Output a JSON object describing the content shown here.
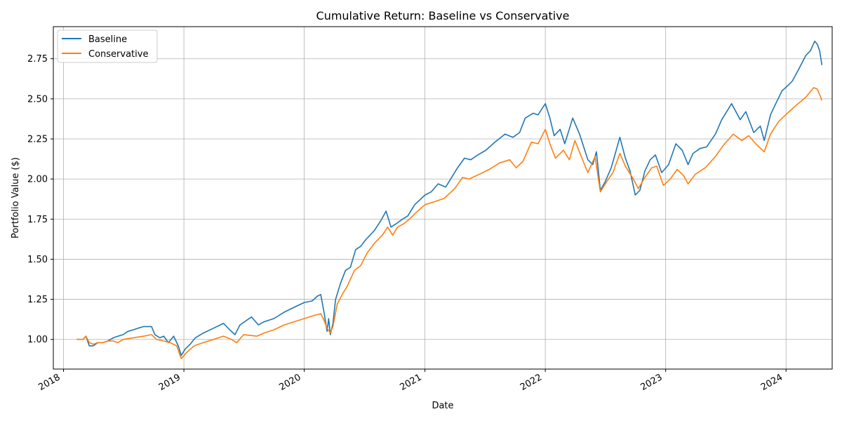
{
  "chart_data": {
    "type": "line",
    "title": "Cumulative Return: Baseline vs Conservative",
    "xlabel": "Date",
    "ylabel": "Portfolio Value ($)",
    "xlim": [
      "2017-12-01",
      "2024-05-20"
    ],
    "ylim": [
      0.815,
      2.95
    ],
    "x_ticks": [
      "2018",
      "2019",
      "2020",
      "2021",
      "2022",
      "2023",
      "2024"
    ],
    "y_ticks": [
      "1.00",
      "1.25",
      "1.50",
      "1.75",
      "2.00",
      "2.25",
      "2.50",
      "2.75"
    ],
    "grid": true,
    "legend_position": "top-left",
    "series": [
      {
        "name": "Baseline",
        "color": "#1f77b4",
        "points": [
          [
            "2018-02-10",
            1.0
          ],
          [
            "2018-03-01",
            1.0
          ],
          [
            "2018-03-10",
            1.02
          ],
          [
            "2018-03-20",
            0.96
          ],
          [
            "2018-04-01",
            0.96
          ],
          [
            "2018-04-15",
            0.98
          ],
          [
            "2018-05-01",
            0.98
          ],
          [
            "2018-05-15",
            0.99
          ],
          [
            "2018-06-01",
            1.01
          ],
          [
            "2018-06-15",
            1.02
          ],
          [
            "2018-07-01",
            1.03
          ],
          [
            "2018-07-15",
            1.05
          ],
          [
            "2018-08-01",
            1.06
          ],
          [
            "2018-08-15",
            1.07
          ],
          [
            "2018-09-01",
            1.08
          ],
          [
            "2018-09-25",
            1.08
          ],
          [
            "2018-10-05",
            1.03
          ],
          [
            "2018-10-20",
            1.01
          ],
          [
            "2018-11-01",
            1.02
          ],
          [
            "2018-11-15",
            0.98
          ],
          [
            "2018-12-01",
            1.02
          ],
          [
            "2018-12-15",
            0.96
          ],
          [
            "2018-12-24",
            0.9
          ],
          [
            "2019-01-05",
            0.94
          ],
          [
            "2019-01-20",
            0.97
          ],
          [
            "2019-02-05",
            1.01
          ],
          [
            "2019-03-01",
            1.04
          ],
          [
            "2019-04-01",
            1.07
          ],
          [
            "2019-05-01",
            1.1
          ],
          [
            "2019-05-20",
            1.06
          ],
          [
            "2019-06-05",
            1.03
          ],
          [
            "2019-06-20",
            1.09
          ],
          [
            "2019-07-25",
            1.14
          ],
          [
            "2019-08-15",
            1.09
          ],
          [
            "2019-09-01",
            1.11
          ],
          [
            "2019-10-01",
            1.13
          ],
          [
            "2019-11-01",
            1.17
          ],
          [
            "2019-12-01",
            1.2
          ],
          [
            "2020-01-01",
            1.23
          ],
          [
            "2020-01-25",
            1.24
          ],
          [
            "2020-02-10",
            1.27
          ],
          [
            "2020-02-20",
            1.28
          ],
          [
            "2020-03-01",
            1.17
          ],
          [
            "2020-03-10",
            1.05
          ],
          [
            "2020-03-15",
            1.13
          ],
          [
            "2020-03-20",
            1.03
          ],
          [
            "2020-03-28",
            1.1
          ],
          [
            "2020-04-05",
            1.25
          ],
          [
            "2020-04-20",
            1.35
          ],
          [
            "2020-05-05",
            1.43
          ],
          [
            "2020-05-20",
            1.45
          ],
          [
            "2020-06-05",
            1.56
          ],
          [
            "2020-06-20",
            1.58
          ],
          [
            "2020-07-05",
            1.62
          ],
          [
            "2020-08-01",
            1.68
          ],
          [
            "2020-08-20",
            1.74
          ],
          [
            "2020-09-05",
            1.8
          ],
          [
            "2020-09-20",
            1.7
          ],
          [
            "2020-10-05",
            1.72
          ],
          [
            "2020-10-25",
            1.75
          ],
          [
            "2020-11-10",
            1.77
          ],
          [
            "2020-12-01",
            1.84
          ],
          [
            "2021-01-01",
            1.9
          ],
          [
            "2021-01-20",
            1.92
          ],
          [
            "2021-02-10",
            1.97
          ],
          [
            "2021-03-05",
            1.95
          ],
          [
            "2021-03-20",
            2.0
          ],
          [
            "2021-04-10",
            2.07
          ],
          [
            "2021-05-01",
            2.13
          ],
          [
            "2021-05-20",
            2.12
          ],
          [
            "2021-06-10",
            2.15
          ],
          [
            "2021-07-05",
            2.18
          ],
          [
            "2021-08-01",
            2.23
          ],
          [
            "2021-09-01",
            2.28
          ],
          [
            "2021-09-25",
            2.26
          ],
          [
            "2021-10-15",
            2.29
          ],
          [
            "2021-11-01",
            2.38
          ],
          [
            "2021-11-25",
            2.41
          ],
          [
            "2021-12-10",
            2.4
          ],
          [
            "2022-01-01",
            2.47
          ],
          [
            "2022-01-15",
            2.38
          ],
          [
            "2022-01-28",
            2.27
          ],
          [
            "2022-02-15",
            2.31
          ],
          [
            "2022-03-01",
            2.22
          ],
          [
            "2022-03-25",
            2.38
          ],
          [
            "2022-04-15",
            2.28
          ],
          [
            "2022-05-10",
            2.12
          ],
          [
            "2022-05-25",
            2.09
          ],
          [
            "2022-06-05",
            2.17
          ],
          [
            "2022-06-17",
            1.93
          ],
          [
            "2022-07-01",
            1.98
          ],
          [
            "2022-07-20",
            2.07
          ],
          [
            "2022-08-15",
            2.26
          ],
          [
            "2022-09-01",
            2.13
          ],
          [
            "2022-09-15",
            2.05
          ],
          [
            "2022-10-01",
            1.9
          ],
          [
            "2022-10-15",
            1.93
          ],
          [
            "2022-10-30",
            2.05
          ],
          [
            "2022-11-15",
            2.12
          ],
          [
            "2022-12-01",
            2.15
          ],
          [
            "2022-12-20",
            2.04
          ],
          [
            "2023-01-10",
            2.09
          ],
          [
            "2023-02-01",
            2.22
          ],
          [
            "2023-02-20",
            2.18
          ],
          [
            "2023-03-10",
            2.09
          ],
          [
            "2023-03-25",
            2.16
          ],
          [
            "2023-04-15",
            2.19
          ],
          [
            "2023-05-05",
            2.2
          ],
          [
            "2023-06-01",
            2.28
          ],
          [
            "2023-06-20",
            2.37
          ],
          [
            "2023-07-20",
            2.47
          ],
          [
            "2023-08-15",
            2.37
          ],
          [
            "2023-09-01",
            2.42
          ],
          [
            "2023-09-25",
            2.29
          ],
          [
            "2023-10-15",
            2.33
          ],
          [
            "2023-10-27",
            2.24
          ],
          [
            "2023-11-15",
            2.4
          ],
          [
            "2023-12-01",
            2.47
          ],
          [
            "2023-12-20",
            2.55
          ],
          [
            "2024-01-05",
            2.58
          ],
          [
            "2024-01-20",
            2.61
          ],
          [
            "2024-02-10",
            2.69
          ],
          [
            "2024-03-01",
            2.77
          ],
          [
            "2024-03-15",
            2.8
          ],
          [
            "2024-03-28",
            2.86
          ],
          [
            "2024-04-05",
            2.84
          ],
          [
            "2024-04-12",
            2.8
          ],
          [
            "2024-04-19",
            2.71
          ]
        ]
      },
      {
        "name": "Conservative",
        "color": "#ff7f0e",
        "points": [
          [
            "2018-02-10",
            1.0
          ],
          [
            "2018-03-01",
            1.0
          ],
          [
            "2018-03-10",
            1.02
          ],
          [
            "2018-03-20",
            0.98
          ],
          [
            "2018-04-01",
            0.97
          ],
          [
            "2018-04-15",
            0.98
          ],
          [
            "2018-05-01",
            0.98
          ],
          [
            "2018-05-15",
            0.99
          ],
          [
            "2018-06-01",
            0.99
          ],
          [
            "2018-06-15",
            0.98
          ],
          [
            "2018-07-01",
            1.0
          ],
          [
            "2018-08-01",
            1.01
          ],
          [
            "2018-09-01",
            1.02
          ],
          [
            "2018-09-25",
            1.03
          ],
          [
            "2018-10-10",
            1.0
          ],
          [
            "2018-11-01",
            0.99
          ],
          [
            "2018-11-20",
            0.98
          ],
          [
            "2018-12-10",
            0.96
          ],
          [
            "2018-12-24",
            0.88
          ],
          [
            "2019-01-10",
            0.92
          ],
          [
            "2019-02-01",
            0.96
          ],
          [
            "2019-03-01",
            0.98
          ],
          [
            "2019-04-01",
            1.0
          ],
          [
            "2019-05-01",
            1.02
          ],
          [
            "2019-05-25",
            1.0
          ],
          [
            "2019-06-10",
            0.98
          ],
          [
            "2019-07-01",
            1.03
          ],
          [
            "2019-08-10",
            1.02
          ],
          [
            "2019-09-01",
            1.04
          ],
          [
            "2019-10-01",
            1.06
          ],
          [
            "2019-11-01",
            1.09
          ],
          [
            "2019-12-01",
            1.11
          ],
          [
            "2020-01-01",
            1.13
          ],
          [
            "2020-02-01",
            1.15
          ],
          [
            "2020-02-20",
            1.16
          ],
          [
            "2020-03-01",
            1.12
          ],
          [
            "2020-03-10",
            1.07
          ],
          [
            "2020-03-20",
            1.04
          ],
          [
            "2020-03-28",
            1.08
          ],
          [
            "2020-04-10",
            1.22
          ],
          [
            "2020-04-25",
            1.28
          ],
          [
            "2020-05-10",
            1.33
          ],
          [
            "2020-06-01",
            1.43
          ],
          [
            "2020-06-20",
            1.46
          ],
          [
            "2020-07-10",
            1.54
          ],
          [
            "2020-08-01",
            1.6
          ],
          [
            "2020-08-25",
            1.65
          ],
          [
            "2020-09-10",
            1.7
          ],
          [
            "2020-09-25",
            1.65
          ],
          [
            "2020-10-10",
            1.7
          ],
          [
            "2020-10-28",
            1.72
          ],
          [
            "2020-11-15",
            1.75
          ],
          [
            "2020-12-05",
            1.79
          ],
          [
            "2021-01-01",
            1.84
          ],
          [
            "2021-02-01",
            1.86
          ],
          [
            "2021-03-01",
            1.88
          ],
          [
            "2021-04-01",
            1.94
          ],
          [
            "2021-04-25",
            2.01
          ],
          [
            "2021-05-15",
            2.0
          ],
          [
            "2021-06-15",
            2.03
          ],
          [
            "2021-07-15",
            2.06
          ],
          [
            "2021-08-15",
            2.1
          ],
          [
            "2021-09-15",
            2.12
          ],
          [
            "2021-10-05",
            2.07
          ],
          [
            "2021-10-25",
            2.11
          ],
          [
            "2021-11-20",
            2.23
          ],
          [
            "2021-12-10",
            2.22
          ],
          [
            "2022-01-01",
            2.31
          ],
          [
            "2022-01-15",
            2.22
          ],
          [
            "2022-02-01",
            2.13
          ],
          [
            "2022-02-25",
            2.18
          ],
          [
            "2022-03-15",
            2.12
          ],
          [
            "2022-04-01",
            2.24
          ],
          [
            "2022-04-20",
            2.14
          ],
          [
            "2022-05-10",
            2.04
          ],
          [
            "2022-06-01",
            2.14
          ],
          [
            "2022-06-17",
            1.92
          ],
          [
            "2022-07-05",
            1.98
          ],
          [
            "2022-07-25",
            2.04
          ],
          [
            "2022-08-15",
            2.16
          ],
          [
            "2022-09-01",
            2.08
          ],
          [
            "2022-09-25",
            2.0
          ],
          [
            "2022-10-10",
            1.94
          ],
          [
            "2022-10-30",
            2.01
          ],
          [
            "2022-11-20",
            2.07
          ],
          [
            "2022-12-05",
            2.08
          ],
          [
            "2022-12-25",
            1.96
          ],
          [
            "2023-01-15",
            2.0
          ],
          [
            "2023-02-05",
            2.06
          ],
          [
            "2023-02-25",
            2.02
          ],
          [
            "2023-03-10",
            1.97
          ],
          [
            "2023-04-01",
            2.03
          ],
          [
            "2023-05-01",
            2.07
          ],
          [
            "2023-06-01",
            2.14
          ],
          [
            "2023-06-25",
            2.21
          ],
          [
            "2023-07-25",
            2.28
          ],
          [
            "2023-08-20",
            2.24
          ],
          [
            "2023-09-10",
            2.27
          ],
          [
            "2023-10-01",
            2.22
          ],
          [
            "2023-10-27",
            2.17
          ],
          [
            "2023-11-15",
            2.28
          ],
          [
            "2023-12-10",
            2.36
          ],
          [
            "2024-01-05",
            2.41
          ],
          [
            "2024-02-01",
            2.46
          ],
          [
            "2024-03-01",
            2.51
          ],
          [
            "2024-03-25",
            2.57
          ],
          [
            "2024-04-05",
            2.56
          ],
          [
            "2024-04-19",
            2.49
          ]
        ]
      }
    ]
  }
}
